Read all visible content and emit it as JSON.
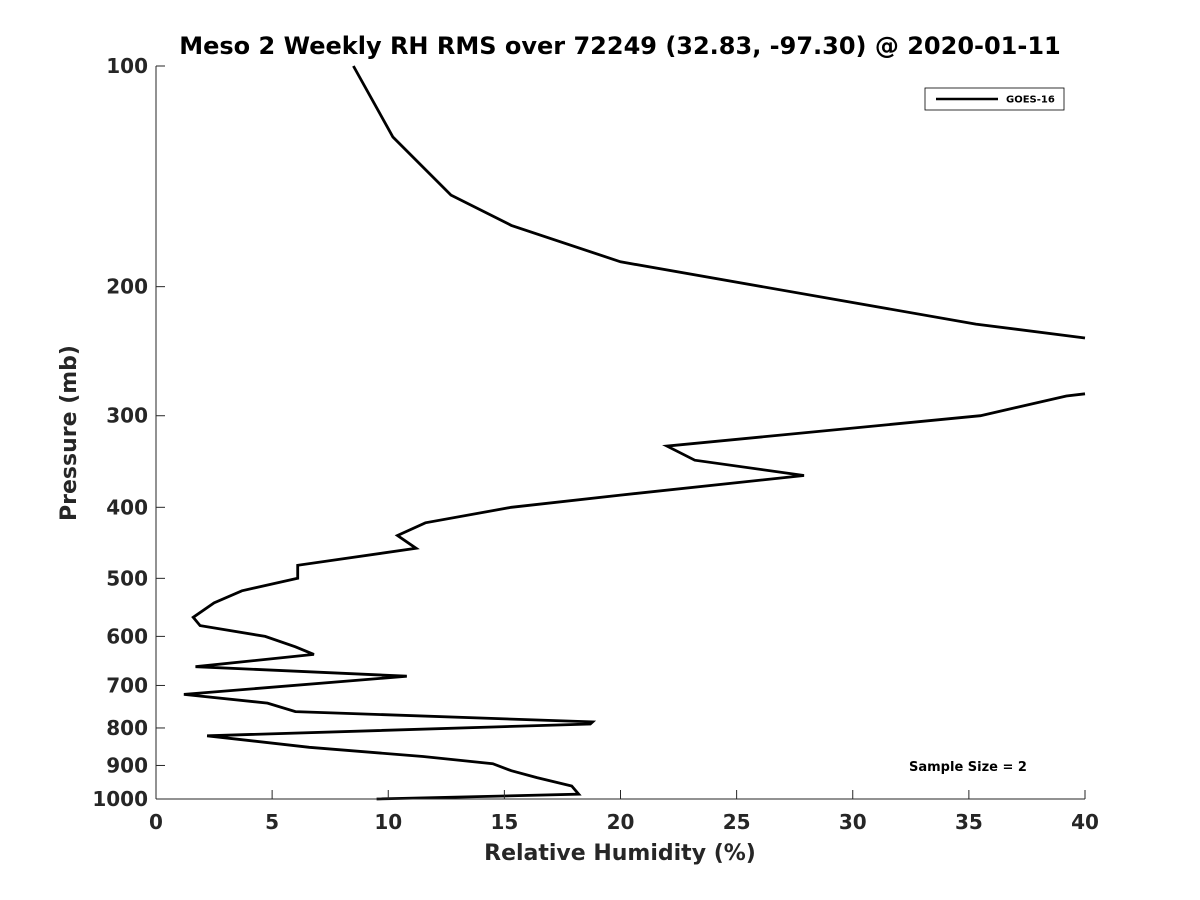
{
  "chart_data": {
    "type": "line",
    "title": "Meso 2 Weekly RH RMS over 72249 (32.83, -97.30) @ 2020-01-11",
    "xlabel": "Relative Humidity (%)",
    "ylabel": "Pressure (mb)",
    "xlim": [
      0,
      40
    ],
    "ylim": [
      100,
      1000
    ],
    "yscale": "log",
    "y_reversed": true,
    "grid": false,
    "x_ticks": [
      0,
      5,
      10,
      15,
      20,
      25,
      30,
      35,
      40
    ],
    "y_ticks": [
      100,
      200,
      300,
      400,
      500,
      600,
      700,
      800,
      900,
      1000
    ],
    "legend": {
      "position": "top-right",
      "entries": [
        "GOES-16"
      ]
    },
    "annotation": "Sample Size = 2",
    "series": [
      {
        "name": "GOES-16",
        "color": "#000000",
        "x": [
          8.5,
          10.2,
          12.7,
          15.3,
          20.0,
          35.3,
          40.0
        ],
        "y": [
          100,
          125,
          150,
          165,
          185,
          225,
          235
        ],
        "segment": "upper"
      },
      {
        "name": "GOES-16",
        "color": "#000000",
        "x": [
          40.0,
          39.2,
          35.5,
          22.0,
          23.2,
          27.9,
          20.0,
          15.3,
          11.6,
          10.4,
          11.2,
          6.1,
          6.1,
          3.7,
          2.5,
          1.6,
          1.9,
          4.7,
          6.0,
          6.8,
          1.7,
          10.8,
          1.2,
          4.8,
          6.0,
          18.8,
          18.7,
          2.2,
          6.6,
          11.5,
          14.5,
          15.3,
          16.4,
          17.9,
          18.2,
          9.5
        ],
        "y": [
          280,
          282,
          300,
          330,
          345,
          362,
          385,
          400,
          420,
          437,
          455,
          480,
          500,
          520,
          540,
          565,
          580,
          600,
          620,
          635,
          660,
          680,
          720,
          740,
          760,
          785,
          790,
          820,
          850,
          875,
          895,
          915,
          935,
          960,
          985,
          1000
        ],
        "segment": "lower"
      }
    ]
  }
}
